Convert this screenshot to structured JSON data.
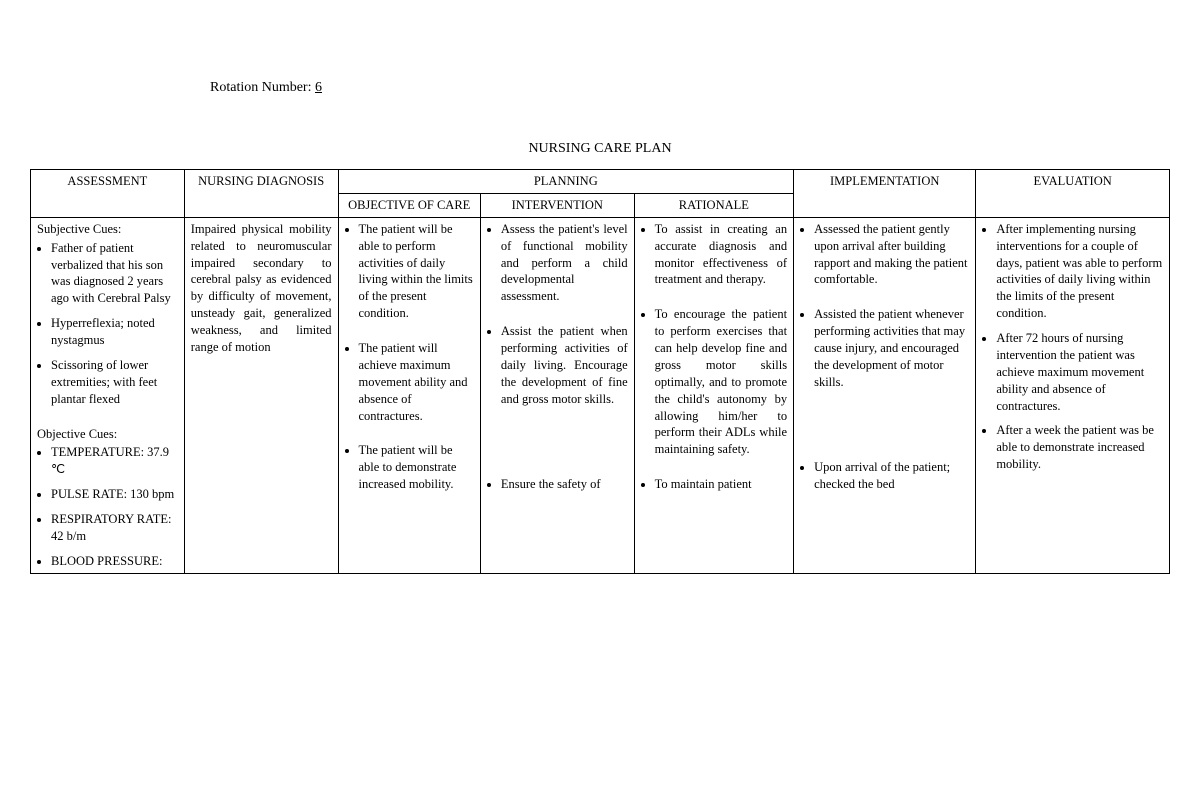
{
  "header": {
    "rotation_label": "Rotation Number: ",
    "rotation_number": "6",
    "title": "NURSING CARE PLAN"
  },
  "columns": {
    "assessment": "ASSESSMENT",
    "diagnosis": "NURSING DIAGNOSIS",
    "planning": "PLANNING",
    "objective": "OBJECTIVE OF CARE",
    "intervention": "INTERVENTION",
    "rationale": "RATIONALE",
    "implementation": "IMPLEMENTATION",
    "evaluation": "EVALUATION"
  },
  "assessment": {
    "subjective_label": "Subjective Cues:",
    "subjective": [
      "Father of patient verbalized that his son was diagnosed 2 years ago with Cerebral Palsy",
      "Hyperreflexia; noted nystagmus",
      "Scissoring of lower extremities; with feet plantar flexed"
    ],
    "objective_label": "Objective Cues:",
    "objective": [
      "TEMPERATURE: 37.9 ℃",
      "PULSE RATE: 130 bpm",
      "RESPIRATORY RATE: 42 b/m",
      "BLOOD PRESSURE:"
    ]
  },
  "diagnosis": "Impaired physical mobility related to neuromuscular impaired secondary to cerebral palsy as evidenced by difficulty of movement, unsteady gait, generalized weakness, and limited range of motion",
  "objective_of_care": [
    "The patient will be able to perform activities of daily living within the limits of the present condition.",
    "The patient will achieve maximum movement ability and absence of contractures.",
    "The patient will be able to demonstrate increased mobility."
  ],
  "intervention": [
    "Assess the patient's level of functional mobility and perform a child developmental assessment.",
    "Assist the patient when performing activities of daily living. Encourage the development of fine and gross motor skills.",
    "Ensure the safety of"
  ],
  "rationale": [
    "To assist in creating an accurate diagnosis and monitor effectiveness of treatment and therapy.",
    "To encourage the patient to perform exercises that can help develop fine and gross motor skills optimally, and to promote the child's autonomy by allowing him/her to perform their ADLs while maintaining safety.",
    "To maintain patient"
  ],
  "implementation": [
    "Assessed the patient gently upon arrival after building rapport and making the patient comfortable.",
    "Assisted the patient whenever performing activities that may cause injury, and encouraged the development of motor skills.",
    "Upon arrival of the patient; checked the bed"
  ],
  "evaluation": [
    "After implementing nursing interventions for a couple of days, patient was able to perform activities of daily living within the limits of the present condition.",
    "After 72 hours of nursing intervention the patient was achieve maximum movement ability and absence of contractures.",
    "After a week the patient was be able to demonstrate increased mobility."
  ]
}
